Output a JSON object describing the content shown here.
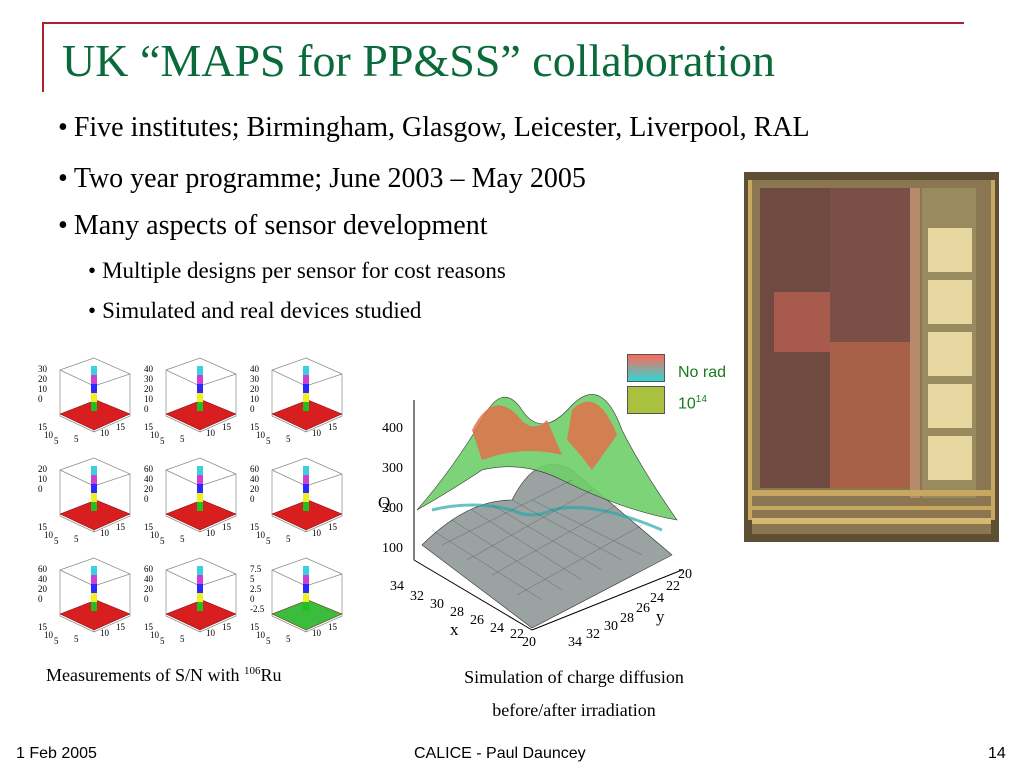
{
  "title": "UK “MAPS for PP&SS” collaboration",
  "bullets": [
    "Five institutes; Birmingham, Glasgow, Leicester, Liverpool, RAL",
    "Two year programme; June 2003 – May 2005",
    "Many aspects of sensor development"
  ],
  "subbullets": [
    "Multiple designs per sensor for cost reasons",
    "Simulated and real devices studied"
  ],
  "bullet_char": "•",
  "plots": {
    "caption_left": "Measurements of S/N with",
    "caption_left_sup": "106",
    "caption_left_tail": "Ru",
    "caption_center_1": "Simulation of charge diffusion",
    "caption_center_2": "before/after irradiation",
    "legend_norad": "No rad",
    "legend_irr": "10",
    "legend_irr_sup": "14",
    "axis_q": "Q",
    "axis_x": "x",
    "axis_y": "y",
    "z_ticks": [
      "400",
      "300",
      "200",
      "100"
    ],
    "x_ticks": [
      "34",
      "32",
      "30",
      "28",
      "26",
      "24",
      "22",
      "20"
    ],
    "y_ticks": [
      "34",
      "32",
      "30",
      "28",
      "26",
      "24",
      "22",
      "20"
    ]
  },
  "mini_plots": [
    {
      "z": [
        "30",
        "20",
        "10",
        "0"
      ]
    },
    {
      "z": [
        "40",
        "30",
        "20",
        "10",
        "0"
      ]
    },
    {
      "z": [
        "40",
        "30",
        "20",
        "10",
        "0"
      ]
    },
    {
      "z": [
        "20",
        "10",
        "0"
      ]
    },
    {
      "z": [
        "60",
        "40",
        "20",
        "0"
      ]
    },
    {
      "z": [
        "60",
        "40",
        "20",
        "0"
      ]
    },
    {
      "z": [
        "60",
        "40",
        "20",
        "0"
      ]
    },
    {
      "z": [
        "60",
        "40",
        "20",
        "0"
      ]
    },
    {
      "z": [
        "7.5",
        "5",
        "2.5",
        "0",
        "-2.5"
      ]
    }
  ],
  "mini_xy": [
    "15",
    "10",
    "5",
    "5",
    "10",
    "15"
  ],
  "footer": {
    "date": "1 Feb 2005",
    "center": "CALICE - Paul Dauncey",
    "page": "14"
  },
  "colors": {
    "title": "#0b6a3a",
    "frame": "#b0202a",
    "legend_text": "#1a7a1a"
  }
}
